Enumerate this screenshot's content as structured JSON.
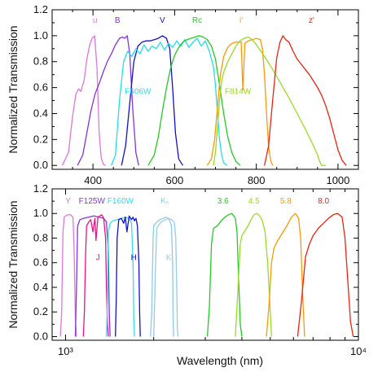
{
  "chart_data": [
    {
      "type": "line",
      "xlabel": "",
      "ylabel": "Normalized Transmission",
      "xlim": [
        300,
        1050
      ],
      "ylim": [
        -0.03,
        1.2
      ],
      "x_scale": "linear",
      "xticks": [
        400,
        600,
        800,
        1000
      ],
      "xtick_labels": [
        "400",
        "600",
        "800",
        "1000"
      ],
      "yticks": [
        0.0,
        0.2,
        0.4,
        0.6,
        0.8,
        1.0,
        1.2
      ],
      "ytick_labels": [
        "0.0",
        "0.2",
        "0.4",
        "0.6",
        "0.8",
        "1.0",
        "1.2"
      ],
      "series": [
        {
          "name": "u",
          "color": "#dd77dd",
          "label_pos": [
            405,
            1.1
          ],
          "x": [
            325,
            340,
            350,
            358,
            365,
            370,
            378,
            385,
            392,
            398,
            404,
            410,
            415,
            420,
            425,
            430
          ],
          "y": [
            0.0,
            0.1,
            0.38,
            0.55,
            0.59,
            0.57,
            0.65,
            0.82,
            0.93,
            0.98,
            1.0,
            0.75,
            0.25,
            0.06,
            0.01,
            0.0
          ]
        },
        {
          "name": "B",
          "color": "#8833dd",
          "label_pos": [
            460,
            1.1
          ],
          "x": [
            362,
            375,
            385,
            395,
            405,
            415,
            425,
            435,
            445,
            455,
            465,
            472,
            478,
            484,
            490,
            497,
            505,
            512
          ],
          "y": [
            0.0,
            0.08,
            0.25,
            0.42,
            0.55,
            0.63,
            0.72,
            0.8,
            0.86,
            0.93,
            0.98,
            0.99,
            0.98,
            1.0,
            0.86,
            0.45,
            0.1,
            0.0
          ]
        },
        {
          "name": "V",
          "color": "#1111cc",
          "label_pos": [
            570,
            1.1
          ],
          "x": [
            470,
            480,
            490,
            500,
            510,
            520,
            530,
            540,
            550,
            560,
            570,
            580,
            588,
            595,
            602,
            610,
            620
          ],
          "y": [
            0.0,
            0.15,
            0.48,
            0.8,
            0.92,
            0.95,
            0.96,
            0.96,
            0.97,
            0.98,
            1.0,
            0.98,
            0.9,
            0.6,
            0.25,
            0.05,
            0.0
          ]
        },
        {
          "name": "F606W",
          "color": "#22ddee",
          "label_pos": [
            510,
            0.55
          ],
          "x": [
            445,
            455,
            465,
            475,
            485,
            495,
            505,
            515,
            525,
            535,
            545,
            555,
            565,
            575,
            585,
            595,
            605,
            615,
            625,
            635,
            645,
            655,
            665,
            675,
            685,
            695,
            700,
            705,
            710,
            715,
            720,
            728
          ],
          "y": [
            0.0,
            0.08,
            0.5,
            0.8,
            0.88,
            0.84,
            0.9,
            0.86,
            0.93,
            0.88,
            0.92,
            0.9,
            0.95,
            0.89,
            0.94,
            0.91,
            0.96,
            0.92,
            0.97,
            0.91,
            0.95,
            0.98,
            0.92,
            0.96,
            0.88,
            0.76,
            0.62,
            0.4,
            0.2,
            0.08,
            0.02,
            0.0
          ]
        },
        {
          "name": "Rc",
          "color": "#22cc22",
          "label_pos": [
            655,
            1.1
          ],
          "x": [
            535,
            550,
            560,
            570,
            580,
            590,
            600,
            610,
            620,
            630,
            640,
            650,
            660,
            670,
            680,
            690,
            700,
            710,
            720,
            730,
            740,
            750,
            760
          ],
          "y": [
            0.0,
            0.08,
            0.22,
            0.42,
            0.6,
            0.75,
            0.85,
            0.91,
            0.95,
            0.97,
            0.98,
            0.99,
            1.0,
            0.99,
            0.97,
            0.92,
            0.82,
            0.62,
            0.4,
            0.22,
            0.1,
            0.03,
            0.0
          ]
        },
        {
          "name": "i'",
          "color": "#ff9900",
          "label_pos": [
            763,
            1.1
          ],
          "x": [
            680,
            690,
            698,
            705,
            712,
            720,
            730,
            740,
            750,
            758,
            763,
            767,
            772,
            780,
            790,
            800,
            810,
            815,
            820,
            825,
            830,
            835,
            840
          ],
          "y": [
            0.0,
            0.05,
            0.2,
            0.45,
            0.7,
            0.84,
            0.91,
            0.94,
            0.95,
            0.95,
            0.95,
            0.58,
            0.94,
            0.96,
            0.97,
            0.98,
            0.97,
            0.9,
            0.7,
            0.4,
            0.15,
            0.04,
            0.0
          ]
        },
        {
          "name": "F814W",
          "color": "#99dd22",
          "label_pos": [
            755,
            0.55
          ],
          "x": [
            695,
            700,
            705,
            710,
            715,
            720,
            730,
            740,
            750,
            760,
            770,
            780,
            790,
            800,
            820,
            840,
            860,
            880,
            900,
            920,
            940,
            950,
            955,
            960,
            965,
            970
          ],
          "y": [
            0.0,
            0.1,
            0.3,
            0.5,
            0.65,
            0.72,
            0.8,
            0.86,
            0.92,
            0.96,
            0.98,
            0.99,
            0.97,
            0.93,
            0.84,
            0.74,
            0.63,
            0.52,
            0.4,
            0.28,
            0.15,
            0.08,
            0.03,
            0.0,
            0.0,
            0.0
          ]
        },
        {
          "name": "z'",
          "color": "#ee2211",
          "label_pos": [
            935,
            1.1
          ],
          "x": [
            820,
            830,
            840,
            850,
            858,
            865,
            872,
            880,
            890,
            900,
            910,
            920,
            930,
            940,
            950,
            960,
            970,
            980,
            990,
            1000,
            1010,
            1020
          ],
          "y": [
            0.0,
            0.15,
            0.5,
            0.83,
            0.95,
            1.0,
            0.97,
            0.95,
            0.88,
            0.82,
            0.78,
            0.74,
            0.7,
            0.65,
            0.6,
            0.54,
            0.46,
            0.36,
            0.24,
            0.12,
            0.04,
            0.0
          ]
        }
      ]
    },
    {
      "type": "line",
      "xlabel": "Wavelength (nm)",
      "ylabel": "Normalized Transmission",
      "xlim": [
        900,
        10000
      ],
      "ylim": [
        -0.03,
        1.2
      ],
      "x_scale": "log",
      "xticks": [
        1000,
        10000
      ],
      "xtick_labels": [
        "10³",
        "10⁴"
      ],
      "yticks": [
        0.0,
        0.2,
        0.4,
        0.6,
        0.8,
        1.0,
        1.2
      ],
      "ytick_labels": [
        "0.0",
        "0.2",
        "0.4",
        "0.6",
        "0.8",
        "1.0",
        "1.2"
      ],
      "series": [
        {
          "name": "Y",
          "color": "#dd77dd",
          "label_pos": [
            1020,
            1.08
          ],
          "x": [
            960,
            970,
            980,
            990,
            1000,
            1020,
            1040,
            1060,
            1070,
            1080,
            1090
          ],
          "y": [
            0.0,
            0.2,
            0.85,
            0.97,
            0.98,
            0.99,
            0.99,
            0.97,
            0.7,
            0.15,
            0.0
          ]
        },
        {
          "name": "F125W",
          "color": "#8833dd",
          "label_pos": [
            1230,
            1.08
          ],
          "x": [
            1080,
            1090,
            1100,
            1120,
            1150,
            1200,
            1250,
            1300,
            1350,
            1380,
            1400,
            1410,
            1420
          ],
          "y": [
            0.0,
            0.4,
            0.9,
            0.95,
            0.96,
            0.97,
            0.98,
            0.97,
            0.96,
            0.93,
            0.7,
            0.2,
            0.0
          ]
        },
        {
          "name": "J",
          "color": "#ee1188",
          "label_pos": [
            1290,
            0.62
          ],
          "x": [
            1150,
            1160,
            1170,
            1180,
            1200,
            1220,
            1240,
            1260,
            1270,
            1290,
            1310,
            1330,
            1350,
            1370,
            1380,
            1390,
            1400
          ],
          "y": [
            0.0,
            0.2,
            0.65,
            0.9,
            0.93,
            0.95,
            0.85,
            0.96,
            0.78,
            0.97,
            0.98,
            0.99,
            0.96,
            0.8,
            0.4,
            0.1,
            0.0
          ]
        },
        {
          "name": "F160W",
          "color": "#33ddee",
          "label_pos": [
            1540,
            1.08
          ],
          "x": [
            1380,
            1390,
            1400,
            1420,
            1450,
            1500,
            1550,
            1600,
            1650,
            1680,
            1700,
            1710,
            1720
          ],
          "y": [
            0.0,
            0.3,
            0.85,
            0.92,
            0.94,
            0.95,
            0.96,
            0.97,
            0.96,
            0.92,
            0.6,
            0.15,
            0.0
          ]
        },
        {
          "name": "H",
          "color": "#1111cc",
          "label_pos": [
            1710,
            0.62
          ],
          "x": [
            1480,
            1490,
            1500,
            1520,
            1550,
            1580,
            1600,
            1620,
            1650,
            1680,
            1700,
            1720,
            1740,
            1760,
            1780,
            1790,
            1800
          ],
          "y": [
            0.0,
            0.3,
            0.8,
            0.95,
            0.96,
            0.92,
            0.97,
            0.85,
            0.98,
            0.95,
            0.97,
            0.94,
            0.96,
            0.9,
            0.6,
            0.2,
            0.0
          ]
        },
        {
          "name": "Kₛ",
          "color": "#88ccee",
          "label_pos": [
            2180,
            1.08
          ],
          "x": [
            1950,
            1970,
            1990,
            2000,
            2050,
            2100,
            2150,
            2200,
            2250,
            2300,
            2320,
            2330,
            2340
          ],
          "y": [
            0.0,
            0.2,
            0.8,
            0.9,
            0.93,
            0.95,
            0.96,
            0.97,
            0.96,
            0.9,
            0.6,
            0.15,
            0.0
          ]
        },
        {
          "name": "K",
          "color": "#99ccdd",
          "label_pos": [
            2250,
            0.62
          ],
          "x": [
            2000,
            2010,
            2030,
            2050,
            2100,
            2150,
            2200,
            2250,
            2300,
            2350,
            2380,
            2400,
            2410,
            2420
          ],
          "y": [
            0.0,
            0.2,
            0.6,
            0.88,
            0.92,
            0.94,
            0.95,
            0.96,
            0.95,
            0.93,
            0.8,
            0.3,
            0.05,
            0.0
          ]
        },
        {
          "name": "3.6",
          "color": "#22cc22",
          "label_pos": [
            3450,
            1.08
          ],
          "x": [
            3050,
            3100,
            3150,
            3200,
            3300,
            3400,
            3500,
            3600,
            3700,
            3800,
            3850,
            3900,
            3950,
            4000
          ],
          "y": [
            0.0,
            0.25,
            0.75,
            0.88,
            0.9,
            0.94,
            0.97,
            0.99,
            1.0,
            0.96,
            0.85,
            0.45,
            0.1,
            0.0
          ]
        },
        {
          "name": "4.5",
          "color": "#99dd22",
          "label_pos": [
            4400,
            1.08
          ],
          "x": [
            3800,
            3850,
            3950,
            4000,
            4100,
            4200,
            4300,
            4400,
            4500,
            4600,
            4700,
            4800,
            4900,
            5000,
            5050
          ],
          "y": [
            0.0,
            0.25,
            0.75,
            0.82,
            0.86,
            0.9,
            0.95,
            0.99,
            1.0,
            0.98,
            0.94,
            0.85,
            0.6,
            0.2,
            0.0
          ]
        },
        {
          "name": "5.8",
          "color": "#ff9900",
          "label_pos": [
            5650,
            1.08
          ],
          "x": [
            4850,
            4950,
            5050,
            5150,
            5300,
            5500,
            5700,
            5900,
            6100,
            6250,
            6350,
            6450,
            6550
          ],
          "y": [
            0.0,
            0.25,
            0.6,
            0.72,
            0.78,
            0.84,
            0.9,
            0.97,
            1.0,
            0.96,
            0.8,
            0.35,
            0.0
          ]
        },
        {
          "name": "8.0",
          "color": "#ee2211",
          "label_pos": [
            7600,
            1.08
          ],
          "x": [
            6200,
            6400,
            6600,
            6800,
            7000,
            7300,
            7600,
            7900,
            8200,
            8500,
            8800,
            9000,
            9200,
            9400,
            9600
          ],
          "y": [
            0.0,
            0.3,
            0.65,
            0.75,
            0.82,
            0.88,
            0.92,
            0.96,
            0.99,
            1.0,
            0.97,
            0.8,
            0.45,
            0.12,
            0.0
          ]
        }
      ]
    }
  ]
}
